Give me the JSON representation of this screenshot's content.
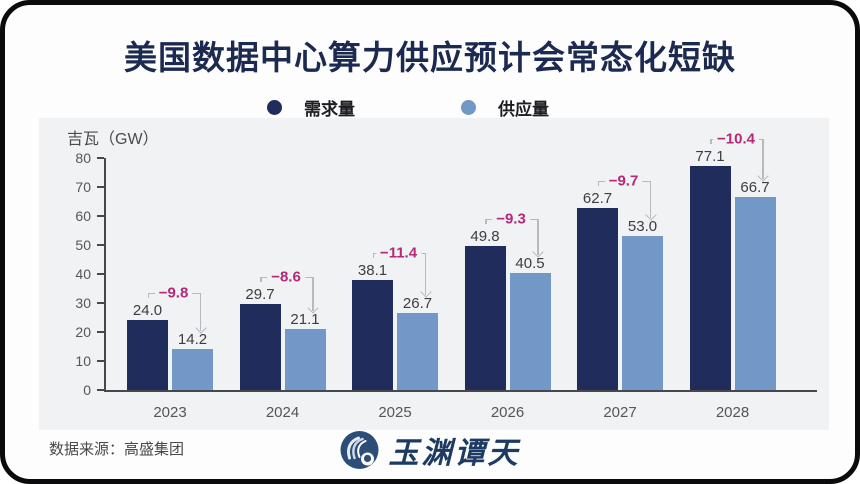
{
  "header": {
    "title": "美国数据中心算力供应预计会常态化短缺"
  },
  "chart_data": {
    "type": "bar",
    "title": "美国数据中心算力供应预计会常态化短缺",
    "unit_label": "吉瓦（GW）",
    "ylabel": "吉瓦（GW）",
    "xlabel": "",
    "categories": [
      "2023",
      "2024",
      "2025",
      "2026",
      "2027",
      "2028"
    ],
    "series": [
      {
        "name": "需求量",
        "values": [
          24.0,
          29.7,
          38.1,
          49.8,
          62.7,
          77.1
        ],
        "color": "#202c5c"
      },
      {
        "name": "供应量",
        "values": [
          14.2,
          21.1,
          26.7,
          40.5,
          53.0,
          66.7
        ],
        "color": "#7198c6"
      }
    ],
    "gap_labels": [
      "−9.8",
      "−8.6",
      "−11.4",
      "−9.3",
      "−9.7",
      "−10.4"
    ],
    "gap_color": "#b62778",
    "annotation_line_color": "#b9b9bd",
    "y_ticks": [
      0,
      10,
      20,
      30,
      40,
      50,
      60,
      70,
      80
    ],
    "ylim": [
      0,
      80
    ],
    "grid": false,
    "legend_position": "top-center"
  },
  "footer": {
    "source": "数据来源：高盛集团",
    "logo_text": "玉渊谭天"
  }
}
